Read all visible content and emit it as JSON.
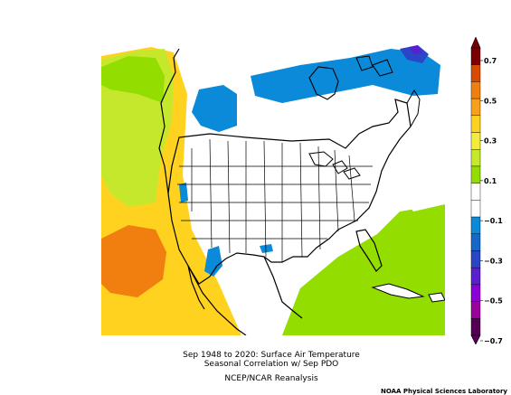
{
  "caption": {
    "line1": "Sep 1948 to 2020: Surface Air Temperature",
    "line2": "Seasonal Correlation w/ Sep PDO",
    "line3": "NCEP/NCAR Reanalysis"
  },
  "credit": "NOAA Physical Sciences Laboratory",
  "colorbar": {
    "labels": [
      "0.7",
      "0.5",
      "0.3",
      "0.1",
      "−0.1",
      "−0.3",
      "−0.5",
      "−0.7"
    ],
    "colors": [
      "#7a0000",
      "#d84a00",
      "#f07f10",
      "#f7a01c",
      "#ffd21f",
      "#f4ec3b",
      "#c6e82c",
      "#94dd00",
      "#ffffff",
      "#ffffff",
      "#0a8ad8",
      "#1567c9",
      "#2b44c8",
      "#5a1fd1",
      "#8a00d7",
      "#99009c",
      "#550055"
    ]
  },
  "map": {
    "colors": {
      "orange": "#f07f10",
      "yellow": "#ffd21f",
      "yellowGreen": "#c6e82c",
      "green": "#94dd00",
      "blue": "#0a8ad8",
      "darkBlue": "#1567c9",
      "purple": "#5a1fd1",
      "land": "#ffffff"
    }
  }
}
